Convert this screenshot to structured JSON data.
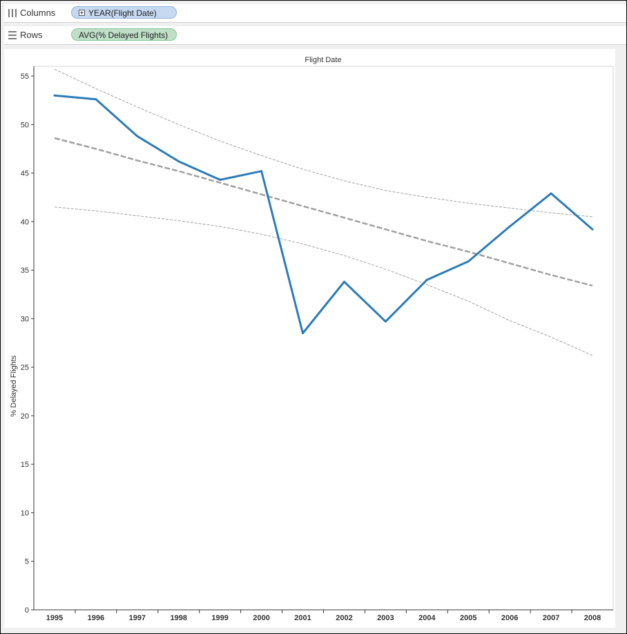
{
  "shelves": {
    "columns": {
      "label": "Columns",
      "pill": "YEAR(Flight Date)"
    },
    "rows": {
      "label": "Rows",
      "pill": "AVG(% Delayed Flights)"
    }
  },
  "colors": {
    "line": "#2b7bb9",
    "trend": "#a0a0a0",
    "columns_pill": "#c6d9f1",
    "rows_pill": "#bfe0c7"
  },
  "chart_data": {
    "type": "line",
    "title": "Flight Date",
    "xlabel": "",
    "ylabel": "% Delayed Flights",
    "categories": [
      "1995",
      "1996",
      "1997",
      "1998",
      "1999",
      "2000",
      "2001",
      "2002",
      "2003",
      "2004",
      "2005",
      "2006",
      "2007",
      "2008"
    ],
    "series": [
      {
        "values": [
          53.0,
          52.6,
          48.8,
          46.2,
          44.3,
          45.2,
          28.5,
          33.8,
          29.7,
          34.0,
          35.9,
          39.5,
          42.9,
          39.2
        ]
      }
    ],
    "trend_line": {
      "style": "dashed",
      "values": [
        48.6,
        47.5,
        46.3,
        45.2,
        44.0,
        42.8,
        41.6,
        40.4,
        39.2,
        38.0,
        36.9,
        35.7,
        34.5,
        33.4
      ]
    },
    "confidence_upper": [
      55.7,
      53.7,
      51.8,
      50.0,
      48.3,
      46.8,
      45.4,
      44.2,
      43.2,
      42.5,
      41.9,
      41.4,
      40.9,
      40.5
    ],
    "confidence_lower": [
      41.5,
      41.1,
      40.6,
      40.1,
      39.5,
      38.7,
      37.7,
      36.5,
      35.1,
      33.5,
      31.8,
      29.8,
      28.1,
      26.2
    ],
    "ylim": [
      0,
      56
    ],
    "yticks": [
      0,
      5,
      10,
      15,
      20,
      25,
      30,
      35,
      40,
      45,
      50,
      55
    ],
    "grid": false,
    "legend": "none"
  }
}
